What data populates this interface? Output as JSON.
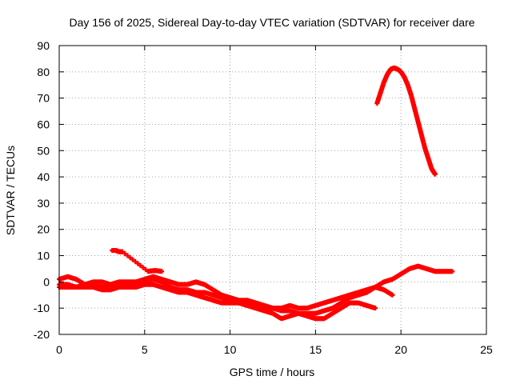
{
  "chart_data": {
    "type": "scatter",
    "title": "Day 156 of 2025, Sidereal Day-to-day VTEC variation (SDTVAR) for receiver dare",
    "xlabel": "GPS time / hours",
    "ylabel": "SDTVAR / TECUs",
    "xlim": [
      0,
      25
    ],
    "ylim": [
      -20,
      90
    ],
    "xticks": [
      0,
      5,
      10,
      15,
      20,
      25
    ],
    "yticks": [
      -20,
      -10,
      0,
      10,
      20,
      30,
      40,
      50,
      60,
      70,
      80,
      90
    ],
    "grid": true,
    "marker_color": "#ff0000",
    "series": [
      {
        "name": "main-trace",
        "x": [
          0.0,
          0.5,
          1.0,
          1.5,
          2.0,
          2.5,
          3.0,
          3.5,
          4.0,
          4.5,
          5.0,
          5.5,
          6.0,
          6.5,
          7.0,
          7.5,
          8.0,
          8.5,
          9.0,
          9.5,
          10.0,
          10.5,
          11.0,
          11.5,
          12.0,
          12.5,
          13.0,
          13.5,
          14.0,
          14.5,
          15.0,
          15.5,
          16.0,
          16.5,
          17.0,
          17.5,
          18.0,
          18.5,
          19.0,
          19.5,
          20.0,
          20.5,
          21.0,
          21.5,
          22.0,
          22.5,
          23.0
        ],
        "y": [
          -1,
          -1,
          -2,
          -1,
          -1,
          -2,
          -2,
          -1,
          -1,
          -1,
          0,
          1,
          0,
          -2,
          -3,
          -3,
          -4,
          -4,
          -5,
          -6,
          -7,
          -8,
          -8,
          -9,
          -10,
          -10,
          -11,
          -11,
          -12,
          -12,
          -12,
          -11,
          -10,
          -8,
          -6,
          -5,
          -4,
          -2,
          0,
          1,
          3,
          5,
          6,
          5,
          4,
          4,
          4
        ]
      },
      {
        "name": "lower-band",
        "x": [
          0.0,
          0.5,
          1.0,
          1.5,
          2.0,
          2.5,
          3.0,
          3.5,
          4.0,
          4.5,
          5.0,
          5.5,
          6.0,
          6.5,
          7.0,
          7.5,
          8.0,
          8.5,
          9.0,
          9.5,
          10.0,
          10.5,
          11.0,
          11.5,
          12.0,
          12.5,
          13.0,
          13.5,
          14.0,
          14.5,
          15.0,
          15.5,
          16.0,
          16.5,
          17.0,
          17.5,
          18.0,
          18.5
        ],
        "y": [
          -2,
          -2,
          -2,
          -2,
          -2,
          -3,
          -3,
          -2,
          -2,
          -2,
          -1,
          -1,
          -2,
          -3,
          -4,
          -4,
          -5,
          -6,
          -7,
          -8,
          -8,
          -8,
          -9,
          -10,
          -11,
          -12,
          -14,
          -13,
          -12,
          -13,
          -14,
          -14,
          -12,
          -10,
          -8,
          -8,
          -9,
          -10
        ]
      },
      {
        "name": "upper-band",
        "x": [
          0.0,
          0.5,
          1.0,
          1.5,
          2.0,
          2.5,
          3.0,
          3.5,
          4.0,
          4.5,
          5.0,
          5.5,
          6.0,
          6.5,
          7.0,
          7.5,
          8.0,
          8.5,
          9.0,
          9.5,
          10.0,
          10.5,
          11.0,
          11.5,
          12.0,
          12.5,
          13.0,
          13.5,
          14.0,
          14.5,
          15.0,
          15.5,
          16.0,
          16.5,
          17.0,
          17.5,
          18.0,
          18.5,
          19.0,
          19.5
        ],
        "y": [
          1,
          2,
          1,
          -1,
          0,
          0,
          -1,
          0,
          0,
          0,
          1,
          2,
          1,
          0,
          -1,
          -1,
          0,
          -1,
          -3,
          -5,
          -6,
          -7,
          -7,
          -8,
          -9,
          -10,
          -10,
          -9,
          -10,
          -10,
          -9,
          -8,
          -7,
          -6,
          -5,
          -4,
          -3,
          -2,
          -3,
          -5
        ]
      },
      {
        "name": "short-segments",
        "x": [
          3.1,
          3.3,
          3.5,
          3.7,
          5.2,
          5.4,
          5.6,
          5.8,
          6.0
        ],
        "y": [
          12,
          12,
          11.5,
          11.5,
          4,
          4.2,
          4.3,
          4.2,
          4
        ]
      },
      {
        "name": "peak-arc",
        "x": [
          18.6,
          18.8,
          19.0,
          19.2,
          19.4,
          19.6,
          19.8,
          20.0,
          20.2,
          20.4,
          20.6,
          20.8,
          21.0,
          21.2,
          21.4,
          21.6,
          21.8,
          22.0
        ],
        "y": [
          68,
          72,
          76,
          79,
          81,
          81.5,
          81,
          80,
          78,
          75,
          71,
          66,
          61,
          56,
          51,
          47,
          43,
          41
        ]
      }
    ]
  }
}
